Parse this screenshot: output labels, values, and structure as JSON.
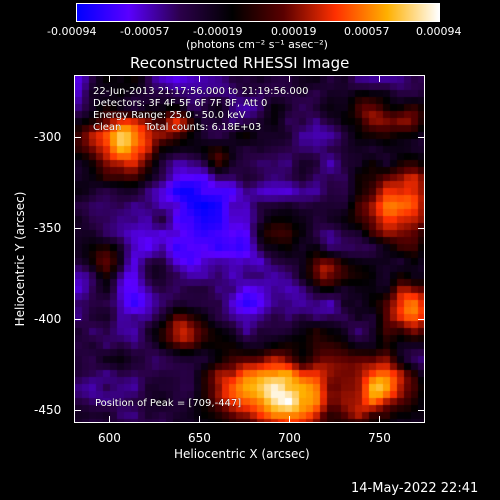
{
  "colorbar": {
    "tick_labels": [
      "-0.00094",
      "-0.00057",
      "-0.00019",
      "0.00019",
      "0.00057",
      "0.00094"
    ],
    "units_label": "(photons cm⁻² s⁻¹ asec⁻²)",
    "range": [
      -0.00094,
      0.00094
    ],
    "colors": [
      "#0000ff",
      "#5a00ff",
      "#2b004a",
      "#000000",
      "#5a0000",
      "#ff3000",
      "#ffb000",
      "#ffffff"
    ]
  },
  "plot": {
    "title": "Reconstructed RHESSI Image",
    "xlabel": "Heliocentric X (arcsec)",
    "ylabel": "Heliocentric Y (arcsec)",
    "x_ticks": [
      "600",
      "650",
      "700",
      "750"
    ],
    "y_ticks": [
      "-300",
      "-350",
      "-400",
      "-450"
    ],
    "xlim": [
      583,
      773
    ],
    "ylim": [
      -458,
      -270
    ]
  },
  "overlay": {
    "line1": "22-Jun-2013 21:17:56.000 to 21:19:56.000",
    "line2": "Detectors: 3F 4F 5F 6F 7F 8F, Att 0",
    "line3": "Energy Range: 25.0 - 50.0 keV",
    "line4": "Clean",
    "line4b": "Total counts: 6.18E+03",
    "peak": "Position of Peak = [709,-447]"
  },
  "footer": {
    "date": "14-May-2022 22:41"
  }
}
